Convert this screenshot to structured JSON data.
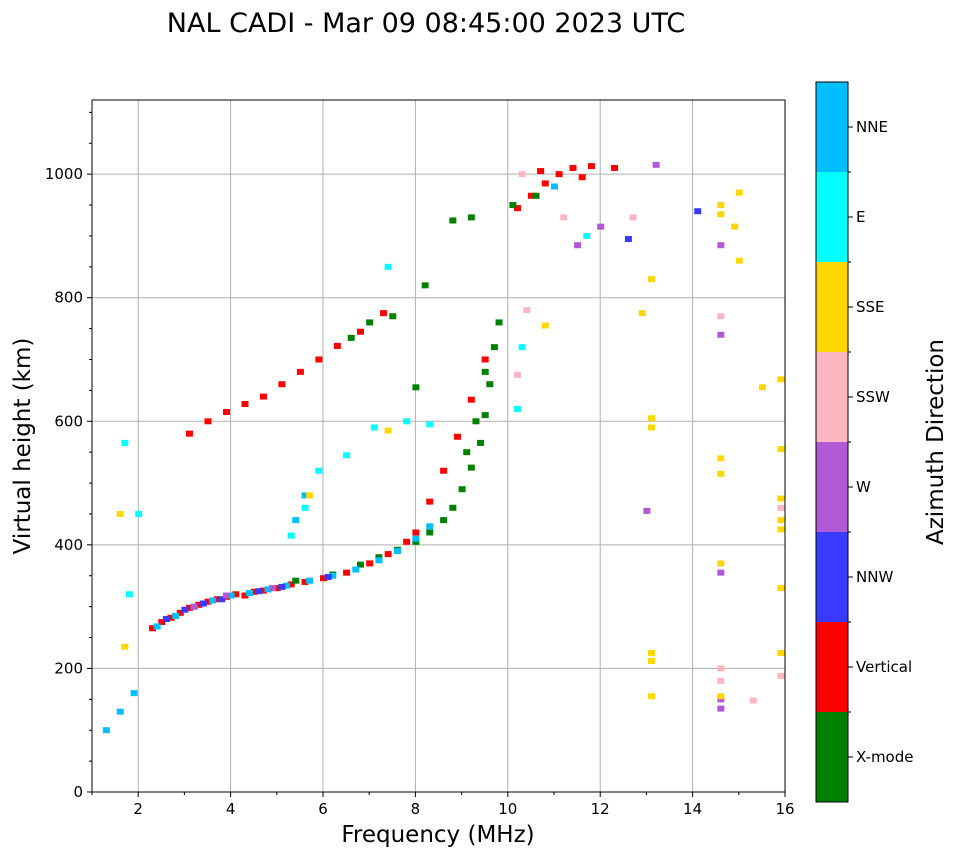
{
  "chart_data": {
    "type": "scatter",
    "title": "NAL CADI - Mar 09 08:45:00 2023 UTC",
    "xlabel": "Frequency (MHz)",
    "ylabel": "Virtual height (km)",
    "xlim": [
      1,
      16
    ],
    "ylim": [
      0,
      1120
    ],
    "xticks": [
      2,
      4,
      6,
      8,
      10,
      12,
      14,
      16
    ],
    "yticks": [
      0,
      200,
      400,
      600,
      800,
      1000
    ],
    "grid": true,
    "colorbar": {
      "label": "Azimuth Direction",
      "categories": [
        {
          "name": "X-mode",
          "color": "#008000"
        },
        {
          "name": "Vertical",
          "color": "#ff0000"
        },
        {
          "name": "NNW",
          "color": "#3a3aff"
        },
        {
          "name": "W",
          "color": "#b25ad6"
        },
        {
          "name": "SSW",
          "color": "#ffb6c1"
        },
        {
          "name": "SSE",
          "color": "#ffd700"
        },
        {
          "name": "E",
          "color": "#00ffff"
        },
        {
          "name": "NNE",
          "color": "#00bfff"
        }
      ]
    },
    "series": [
      {
        "name": "Vertical",
        "points": [
          [
            2.3,
            265
          ],
          [
            2.5,
            275
          ],
          [
            2.7,
            282
          ],
          [
            2.9,
            290
          ],
          [
            3.1,
            298
          ],
          [
            3.3,
            303
          ],
          [
            3.5,
            308
          ],
          [
            3.7,
            312
          ],
          [
            3.9,
            316
          ],
          [
            4.1,
            320
          ],
          [
            4.3,
            318
          ],
          [
            4.5,
            324
          ],
          [
            4.7,
            326
          ],
          [
            5.0,
            330
          ],
          [
            5.3,
            336
          ],
          [
            5.6,
            340
          ],
          [
            6.0,
            346
          ],
          [
            6.5,
            355
          ],
          [
            7.0,
            370
          ],
          [
            7.4,
            385
          ],
          [
            7.8,
            405
          ],
          [
            8.0,
            420
          ],
          [
            8.3,
            470
          ],
          [
            8.6,
            520
          ],
          [
            8.9,
            575
          ],
          [
            9.2,
            635
          ],
          [
            9.5,
            700
          ],
          [
            3.1,
            580
          ],
          [
            3.5,
            600
          ],
          [
            3.9,
            615
          ],
          [
            4.3,
            628
          ],
          [
            4.7,
            640
          ],
          [
            5.1,
            660
          ],
          [
            5.5,
            680
          ],
          [
            5.9,
            700
          ],
          [
            6.3,
            722
          ],
          [
            6.8,
            745
          ],
          [
            7.3,
            775
          ],
          [
            10.2,
            945
          ],
          [
            10.5,
            965
          ],
          [
            10.8,
            985
          ],
          [
            11.1,
            1000
          ],
          [
            11.4,
            1010
          ],
          [
            11.8,
            1013
          ],
          [
            12.3,
            1010
          ],
          [
            10.7,
            1005
          ],
          [
            11.6,
            995
          ]
        ]
      },
      {
        "name": "X-mode",
        "points": [
          [
            5.4,
            342
          ],
          [
            6.2,
            352
          ],
          [
            6.8,
            368
          ],
          [
            7.2,
            380
          ],
          [
            7.6,
            392
          ],
          [
            8.0,
            405
          ],
          [
            8.3,
            420
          ],
          [
            8.6,
            440
          ],
          [
            8.8,
            460
          ],
          [
            9.0,
            490
          ],
          [
            9.2,
            525
          ],
          [
            9.4,
            565
          ],
          [
            9.5,
            610
          ],
          [
            9.6,
            660
          ],
          [
            9.7,
            720
          ],
          [
            9.5,
            680
          ],
          [
            9.3,
            600
          ],
          [
            9.1,
            550
          ],
          [
            9.8,
            760
          ],
          [
            7.5,
            770
          ],
          [
            8.2,
            820
          ],
          [
            8.8,
            925
          ],
          [
            9.2,
            930
          ],
          [
            10.1,
            950
          ],
          [
            10.6,
            965
          ],
          [
            6.6,
            735
          ],
          [
            7.0,
            760
          ],
          [
            8.0,
            655
          ]
        ]
      },
      {
        "name": "NNE",
        "points": [
          [
            2.4,
            268
          ],
          [
            2.8,
            285
          ],
          [
            3.2,
            300
          ],
          [
            3.6,
            310
          ],
          [
            4.0,
            318
          ],
          [
            4.4,
            322
          ],
          [
            4.8,
            328
          ],
          [
            5.2,
            334
          ],
          [
            5.7,
            342
          ],
          [
            6.2,
            350
          ],
          [
            6.7,
            360
          ],
          [
            7.2,
            375
          ],
          [
            7.6,
            390
          ],
          [
            8.0,
            410
          ],
          [
            8.3,
            430
          ],
          [
            1.3,
            100
          ],
          [
            1.6,
            130
          ],
          [
            1.9,
            160
          ],
          [
            5.4,
            440
          ],
          [
            5.6,
            480
          ],
          [
            11.0,
            980
          ]
        ]
      },
      {
        "name": "NNW",
        "points": [
          [
            2.6,
            280
          ],
          [
            3.0,
            295
          ],
          [
            3.4,
            305
          ],
          [
            3.8,
            312
          ],
          [
            4.6,
            325
          ],
          [
            5.1,
            332
          ],
          [
            6.1,
            348
          ],
          [
            12.6,
            895
          ],
          [
            14.1,
            940
          ]
        ]
      },
      {
        "name": "W",
        "points": [
          [
            3.2,
            300
          ],
          [
            3.9,
            318
          ],
          [
            4.9,
            330
          ],
          [
            13.0,
            455
          ],
          [
            14.6,
            355
          ],
          [
            14.6,
            150
          ],
          [
            14.6,
            135
          ],
          [
            14.6,
            740
          ],
          [
            14.6,
            885
          ],
          [
            13.2,
            1015
          ],
          [
            12.0,
            915
          ],
          [
            11.5,
            885
          ]
        ]
      },
      {
        "name": "SSW",
        "points": [
          [
            10.2,
            675
          ],
          [
            10.4,
            780
          ],
          [
            11.2,
            930
          ],
          [
            12.7,
            930
          ],
          [
            14.6,
            200
          ],
          [
            14.6,
            180
          ],
          [
            14.6,
            770
          ],
          [
            15.3,
            148
          ],
          [
            15.9,
            188
          ],
          [
            15.9,
            460
          ],
          [
            10.3,
            1000
          ]
        ]
      },
      {
        "name": "SSE",
        "points": [
          [
            1.6,
            450
          ],
          [
            1.7,
            235
          ],
          [
            5.7,
            480
          ],
          [
            7.4,
            585
          ],
          [
            10.8,
            755
          ],
          [
            12.9,
            775
          ],
          [
            13.1,
            830
          ],
          [
            13.1,
            605
          ],
          [
            13.1,
            590
          ],
          [
            13.1,
            225
          ],
          [
            13.1,
            212
          ],
          [
            13.1,
            155
          ],
          [
            14.6,
            540
          ],
          [
            14.6,
            515
          ],
          [
            14.6,
            370
          ],
          [
            14.6,
            155
          ],
          [
            14.6,
            950
          ],
          [
            14.6,
            935
          ],
          [
            15.0,
            860
          ],
          [
            14.9,
            915
          ],
          [
            15.0,
            970
          ],
          [
            15.5,
            655
          ],
          [
            15.9,
            668
          ],
          [
            15.9,
            555
          ],
          [
            15.9,
            475
          ],
          [
            15.9,
            440
          ],
          [
            15.9,
            425
          ],
          [
            15.9,
            330
          ],
          [
            15.9,
            225
          ]
        ]
      },
      {
        "name": "E",
        "points": [
          [
            5.3,
            415
          ],
          [
            5.6,
            460
          ],
          [
            5.9,
            520
          ],
          [
            6.5,
            545
          ],
          [
            7.1,
            590
          ],
          [
            7.8,
            600
          ],
          [
            8.3,
            595
          ],
          [
            1.7,
            565
          ],
          [
            1.8,
            320
          ],
          [
            2.0,
            450
          ],
          [
            7.4,
            850
          ],
          [
            10.2,
            620
          ],
          [
            10.3,
            720
          ],
          [
            11.7,
            900
          ]
        ]
      }
    ]
  }
}
